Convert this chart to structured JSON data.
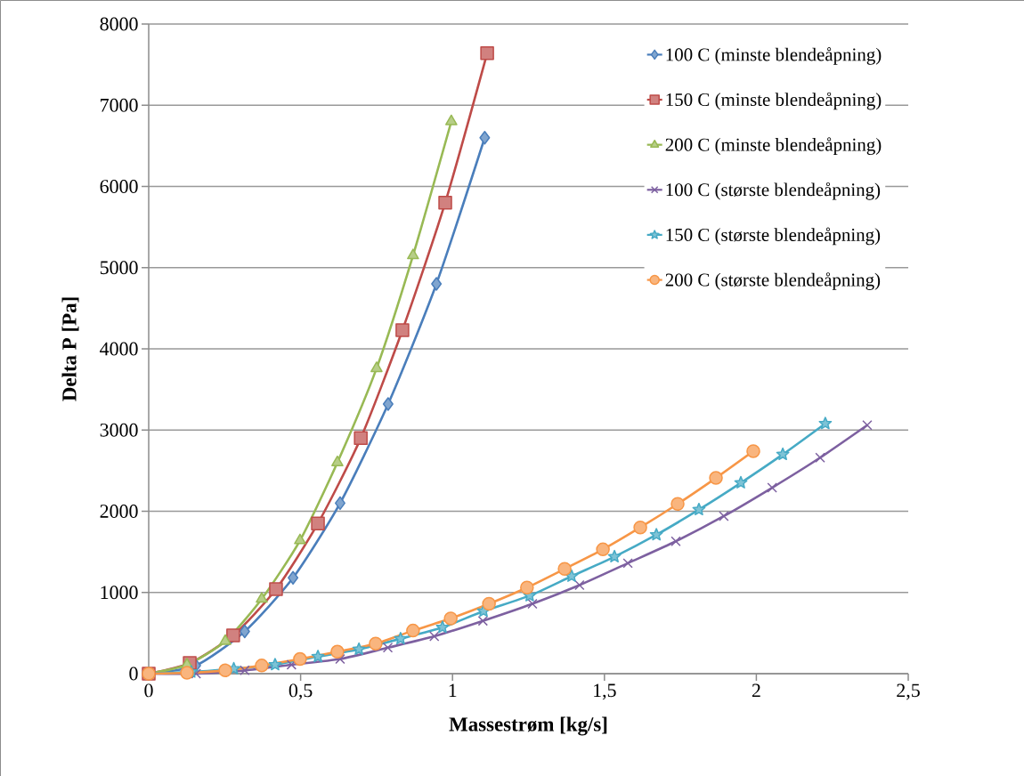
{
  "chart_data": {
    "type": "line",
    "xlabel": "Massestrøm [kg/s]",
    "ylabel": "Delta P [Pa]",
    "xlim": [
      0,
      2.5
    ],
    "ylim": [
      0,
      8000
    ],
    "xticks": [
      0,
      {
        "value": 0.5,
        "label": "0,5"
      },
      1,
      {
        "value": 1.5,
        "label": "1,5"
      },
      2,
      {
        "value": 2.5,
        "label": "2,5"
      }
    ],
    "yticks": [
      0,
      1000,
      2000,
      3000,
      4000,
      5000,
      6000,
      7000,
      8000
    ],
    "grid": "y",
    "legend": "top right",
    "line_style": "solid",
    "series": [
      {
        "name": "100 C (minste blendeåpning)",
        "color": "#4a7ebb",
        "marker": "diamond",
        "x": [
          0,
          0.155,
          0.316,
          0.475,
          0.63,
          0.788,
          0.947,
          1.106
        ],
        "values": [
          0,
          100,
          520,
          1180,
          2100,
          3320,
          4800,
          6600
        ]
      },
      {
        "name": "150 C (minste blendeåpning)",
        "color": "#be4b48",
        "marker": "square",
        "x": [
          0,
          0.135,
          0.278,
          0.419,
          0.557,
          0.698,
          0.835,
          0.976,
          1.114
        ],
        "values": [
          0,
          130,
          470,
          1040,
          1850,
          2900,
          4230,
          5800,
          7640
        ]
      },
      {
        "name": "200 C (minste blendeåpning)",
        "color": "#98b954",
        "marker": "triangle",
        "x": [
          0,
          0.126,
          0.252,
          0.372,
          0.498,
          0.621,
          0.75,
          0.87,
          0.996
        ],
        "values": [
          0,
          110,
          400,
          920,
          1640,
          2600,
          3760,
          5150,
          6800
        ]
      },
      {
        "name": "100 C (største blendeåpning)",
        "color": "#7d60a0",
        "marker": "cross",
        "x": [
          0,
          0.156,
          0.316,
          0.47,
          0.63,
          0.787,
          0.94,
          1.1,
          1.263,
          1.418,
          1.577,
          1.735,
          1.893,
          2.052,
          2.21,
          2.365
        ],
        "values": [
          0,
          0,
          40,
          110,
          180,
          320,
          460,
          650,
          860,
          1090,
          1360,
          1630,
          1940,
          2290,
          2660,
          3060
        ]
      },
      {
        "name": "150 C (største blendeåpning)",
        "color": "#46aac5",
        "marker": "star",
        "x": [
          0,
          0.14,
          0.28,
          0.416,
          0.557,
          0.692,
          0.829,
          0.967,
          1.102,
          1.254,
          1.392,
          1.533,
          1.671,
          1.811,
          1.949,
          2.087,
          2.227
        ],
        "values": [
          0,
          20,
          60,
          110,
          210,
          300,
          430,
          570,
          770,
          960,
          1200,
          1440,
          1710,
          2020,
          2350,
          2700,
          3080
        ]
      },
      {
        "name": "200 C (største blendeåpning)",
        "color": "#f79646",
        "marker": "circle",
        "x": [
          0,
          0.126,
          0.252,
          0.372,
          0.498,
          0.621,
          0.747,
          0.87,
          0.994,
          1.12,
          1.245,
          1.369,
          1.495,
          1.618,
          1.741,
          1.867,
          1.99
        ],
        "values": [
          0,
          10,
          40,
          100,
          180,
          270,
          370,
          530,
          680,
          860,
          1060,
          1290,
          1530,
          1800,
          2090,
          2410,
          2740
        ]
      }
    ]
  }
}
